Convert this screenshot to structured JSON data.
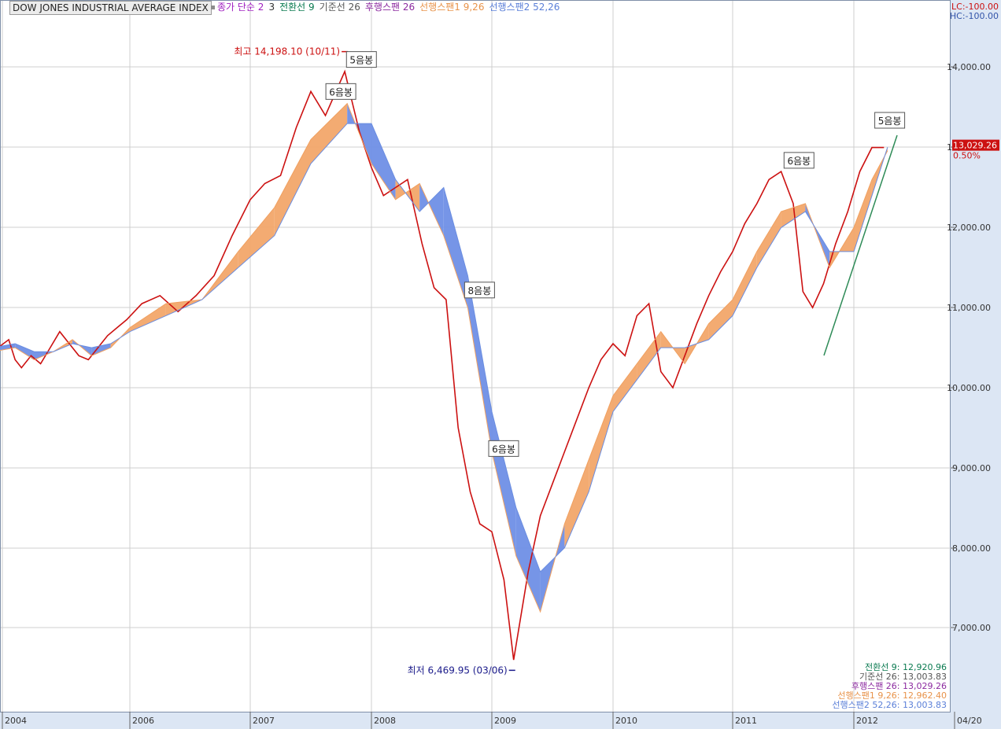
{
  "window": {
    "title": "DOW JONES INDUSTRIAL AVERAGE INDEX",
    "legend": [
      {
        "label": "종가 단순 2",
        "color": "#a020c0"
      },
      {
        "label": "3",
        "color": "#333333"
      },
      {
        "label": "전환선 9",
        "color": "#0a7a50"
      },
      {
        "label": "기준선 26",
        "color": "#555555"
      },
      {
        "label": "후행스팬 26",
        "color": "#8c2aa0"
      },
      {
        "label": "선행스팬1 9,26",
        "color": "#e8934a"
      },
      {
        "label": "선행스팬2 52,26",
        "color": "#5a7fd8"
      }
    ],
    "lc_label": "LC:-100.00",
    "hc_label": "HC:-100.00"
  },
  "chart_data": {
    "type": "line",
    "title": "DOW JONES INDUSTRIAL AVERAGE INDEX",
    "xlabel": "",
    "ylabel": "",
    "x_ticks": [
      "2004",
      "2006",
      "2007",
      "2008",
      "2009",
      "2010",
      "2011",
      "2012",
      "04/20"
    ],
    "y_ticks": [
      "7,000.00",
      "8,000.00",
      "9,000.00",
      "10,000.00",
      "11,000.00",
      "12,000.00",
      "13,000.00",
      "14,000.00"
    ],
    "ylim": [
      6000,
      14700
    ],
    "xlim": [
      2003.9,
      2012.35
    ],
    "grid": true,
    "series": [
      {
        "name": "종가 단순 2",
        "color": "#cc1111",
        "x": [
          2003.92,
          2004.1,
          2004.2,
          2004.3,
          2004.45,
          2004.6,
          2004.75,
          2004.9,
          2005.05,
          2005.2,
          2005.35,
          2005.5,
          2005.65,
          2005.8,
          2005.95,
          2006.1,
          2006.25,
          2006.4,
          2006.55,
          2006.7,
          2006.85,
          2007.0,
          2007.12,
          2007.25,
          2007.38,
          2007.5,
          2007.62,
          2007.78,
          2007.9,
          2008.0,
          2008.1,
          2008.2,
          2008.3,
          2008.42,
          2008.52,
          2008.62,
          2008.72,
          2008.82,
          2008.9,
          2009.0,
          2009.1,
          2009.18,
          2009.3,
          2009.4,
          2009.5,
          2009.6,
          2009.7,
          2009.8,
          2009.9,
          2010.0,
          2010.1,
          2010.2,
          2010.3,
          2010.4,
          2010.5,
          2010.6,
          2010.7,
          2010.8,
          2010.9,
          2011.0,
          2011.1,
          2011.2,
          2011.3,
          2011.4,
          2011.5,
          2011.58,
          2011.66,
          2011.75,
          2011.85,
          2011.95,
          2012.05,
          2012.15,
          2012.25
        ],
        "values": [
          10450,
          10600,
          10350,
          10250,
          10400,
          10300,
          10500,
          10700,
          10550,
          10400,
          10350,
          10500,
          10650,
          10750,
          10850,
          11050,
          11150,
          10950,
          11150,
          11400,
          11900,
          12350,
          12550,
          12650,
          13250,
          13700,
          13400,
          13950,
          13200,
          12750,
          12400,
          12500,
          12600,
          11800,
          11250,
          11100,
          9500,
          8700,
          8300,
          8200,
          7600,
          6600,
          7700,
          8400,
          8800,
          9200,
          9600,
          10000,
          10350,
          10550,
          10400,
          10900,
          11050,
          10200,
          10000,
          10400,
          10800,
          11150,
          11450,
          11700,
          12050,
          12300,
          12600,
          12700,
          12300,
          11200,
          11000,
          11300,
          11800,
          12200,
          12700,
          13000,
          13000
        ]
      },
      {
        "name": "선행스팬1 9,26",
        "color": "#f0a060",
        "x": [
          2003.92,
          2004.2,
          2004.5,
          2004.8,
          2005.1,
          2005.4,
          2005.7,
          2006.0,
          2006.3,
          2006.6,
          2006.9,
          2007.2,
          2007.5,
          2007.8,
          2008.0,
          2008.2,
          2008.4,
          2008.6,
          2008.8,
          2009.0,
          2009.2,
          2009.4,
          2009.6,
          2009.8,
          2010.0,
          2010.2,
          2010.4,
          2010.6,
          2010.8,
          2011.0,
          2011.2,
          2011.4,
          2011.6,
          2011.8,
          2012.0,
          2012.15,
          2012.28
        ],
        "values": [
          10450,
          10500,
          10350,
          10450,
          10600,
          10400,
          10500,
          10750,
          11050,
          11100,
          11700,
          12250,
          13100,
          13550,
          12800,
          12350,
          12550,
          11900,
          11000,
          9200,
          7900,
          7200,
          8300,
          9100,
          9900,
          10300,
          10700,
          10300,
          10800,
          11100,
          11700,
          12200,
          12300,
          11500,
          12000,
          12600,
          12960
        ]
      },
      {
        "name": "선행스팬2 52,26",
        "color": "#6a8de0",
        "x": [
          2003.92,
          2004.2,
          2004.5,
          2004.8,
          2005.1,
          2005.4,
          2005.7,
          2006.0,
          2006.3,
          2006.6,
          2006.9,
          2007.2,
          2007.5,
          2007.8,
          2008.0,
          2008.2,
          2008.4,
          2008.6,
          2008.8,
          2009.0,
          2009.2,
          2009.4,
          2009.6,
          2009.8,
          2010.0,
          2010.2,
          2010.4,
          2010.6,
          2010.8,
          2011.0,
          2011.2,
          2011.4,
          2011.6,
          2011.8,
          2012.0,
          2012.15,
          2012.28
        ],
        "values": [
          10500,
          10550,
          10450,
          10450,
          10550,
          10500,
          10550,
          10700,
          10900,
          11100,
          11500,
          11900,
          12800,
          13300,
          13300,
          12600,
          12200,
          12500,
          11400,
          9700,
          8500,
          7700,
          8000,
          8700,
          9700,
          10100,
          10500,
          10500,
          10600,
          10900,
          11500,
          12000,
          12200,
          11700,
          11700,
          12400,
          13003
        ]
      }
    ],
    "annotations": [
      {
        "text": "최고 14,198.10 (10/11)",
        "x": 2007.78,
        "y": 14198.1,
        "color": "#cc1111"
      },
      {
        "text": "최저 6,469.95 (03/06)",
        "x": 2009.18,
        "y": 6469.95,
        "color": "#1a1a8a"
      },
      {
        "text": "5음봉",
        "x": 2007.82,
        "y": 14100
      },
      {
        "text": "6음봉",
        "x": 2007.65,
        "y": 13700
      },
      {
        "text": "8음봉",
        "x": 2008.8,
        "y": 11220
      },
      {
        "text": "6음봉",
        "x": 2009.0,
        "y": 9240
      },
      {
        "text": "6음봉",
        "x": 2011.45,
        "y": 12840
      },
      {
        "text": "5음봉",
        "x": 2012.2,
        "y": 13340
      }
    ],
    "last_price": "13,029.26",
    "last_change": "0.50%",
    "footer_values": [
      {
        "label": "전환선 9: 12,920.96",
        "color": "#0a7a50"
      },
      {
        "label": "기준선 26: 13,003.83",
        "color": "#555555"
      },
      {
        "label": "후행스팬 26: 13,029.26",
        "color": "#8c2aa0"
      },
      {
        "label": "선행스팬1 9,26: 12,962.40",
        "color": "#e8934a"
      },
      {
        "label": "선행스팬2 52,26: 13,003.83",
        "color": "#5a7fd8"
      }
    ]
  }
}
